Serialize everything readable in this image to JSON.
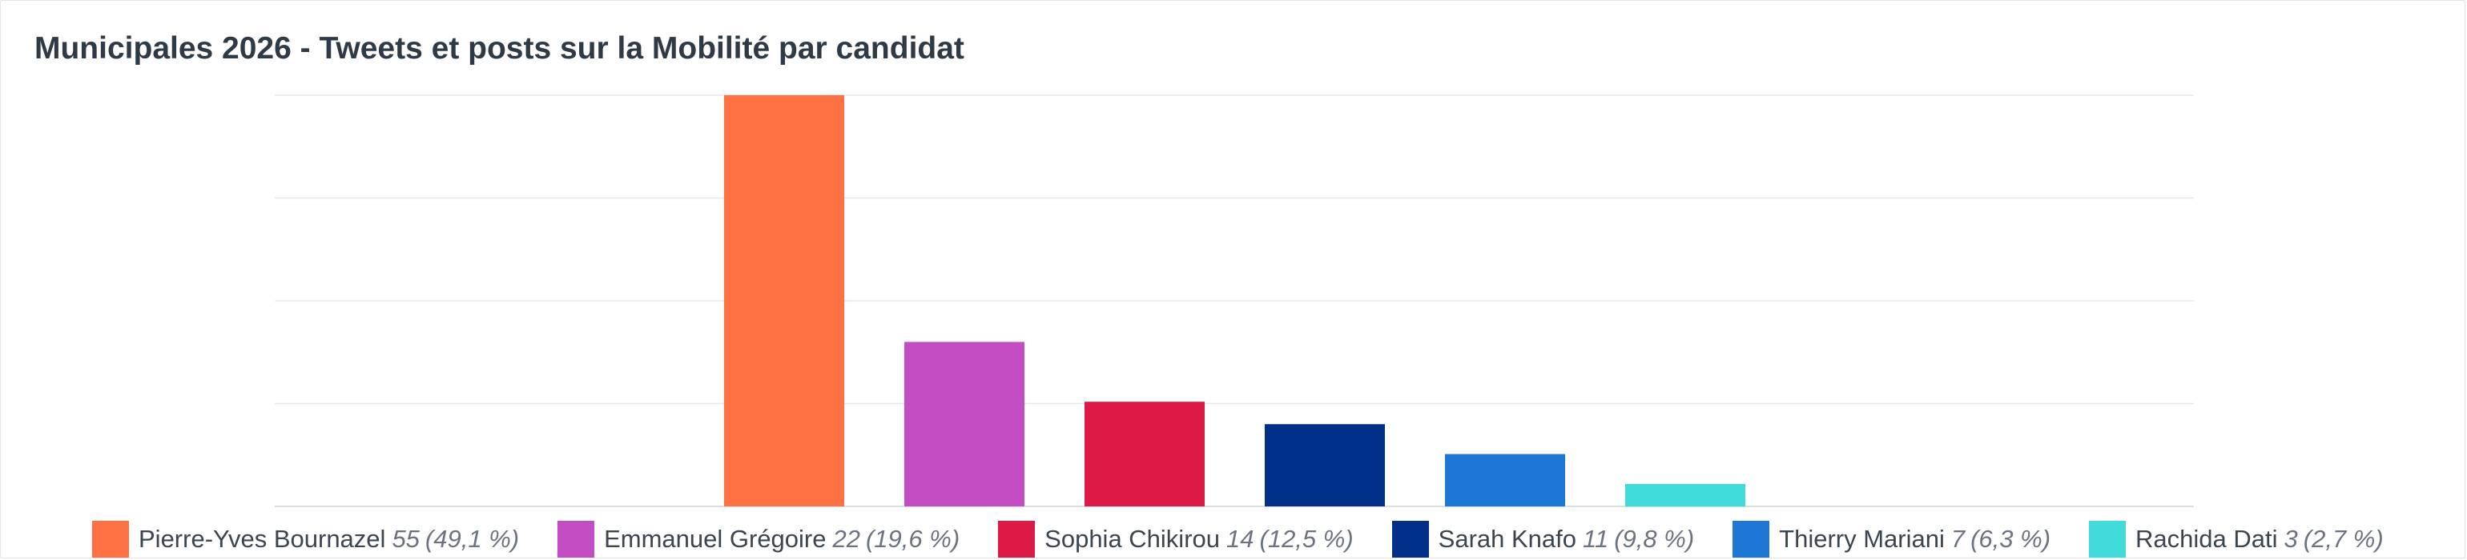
{
  "chart_data": {
    "type": "bar",
    "title": "Municipales 2026 - Tweets et posts sur la Mobilité par candidat",
    "xlabel": "",
    "ylabel": "",
    "ylim": [
      0,
      55
    ],
    "grid": true,
    "legend_position": "bottom",
    "categories": [
      "Pierre-Yves Bournazel",
      "Emmanuel Grégoire",
      "Sophia Chikirou",
      "Sarah Knafo",
      "Thierry Mariani",
      "Rachida Dati"
    ],
    "values": [
      55,
      22,
      14,
      11,
      7,
      3
    ],
    "percent_labels": [
      "(49,1 %)",
      "(19,6 %)",
      "(12,5 %)",
      "(9,8 %)",
      "(6,3 %)",
      "(2,7 %)"
    ],
    "colors": [
      "#ff7043",
      "#c34dc3",
      "#dd1a45",
      "#003087",
      "#1c78d4",
      "#42dbdb"
    ],
    "series": [
      {
        "values": [
          55,
          22,
          14,
          11,
          7,
          3
        ]
      }
    ]
  }
}
